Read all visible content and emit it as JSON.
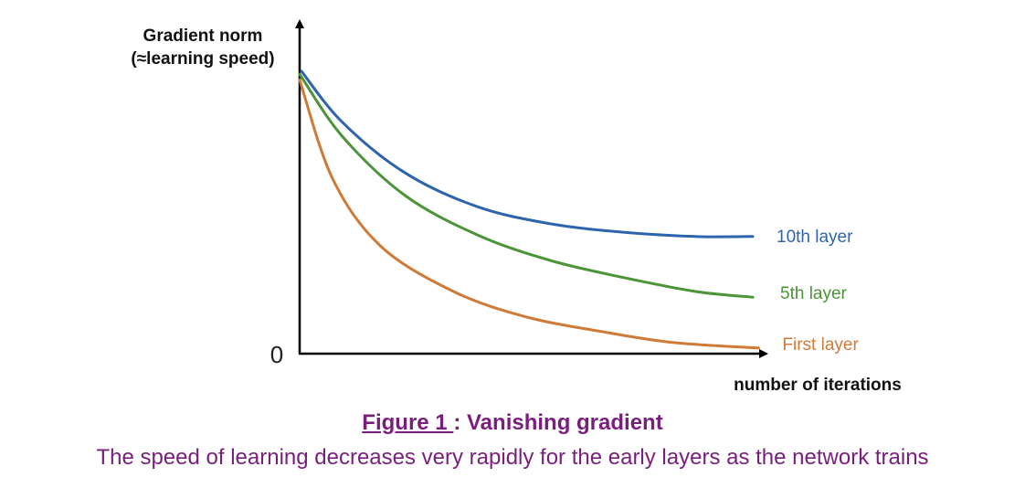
{
  "chart_data": {
    "type": "line",
    "ylabel_line1": "Gradient norm",
    "ylabel_line2": "(≈learning speed)",
    "xlabel": "number of iterations",
    "y_tick_labels": [
      "0"
    ],
    "xlim": [
      0,
      1
    ],
    "ylim": [
      0,
      1
    ],
    "grid": false,
    "legend": "inline-labels-at-line-ends",
    "series": [
      {
        "name": "10th layer",
        "color": "#2e64ad",
        "x": [
          0.036,
          0.12,
          0.25,
          0.4,
          0.55,
          0.7,
          0.85,
          0.968
        ],
        "y": [
          1.0,
          0.82,
          0.64,
          0.52,
          0.46,
          0.43,
          0.415,
          0.415
        ]
      },
      {
        "name": "5th layer",
        "color": "#4b9438",
        "x": [
          0.032,
          0.12,
          0.25,
          0.4,
          0.55,
          0.7,
          0.85,
          0.968
        ],
        "y": [
          0.99,
          0.77,
          0.56,
          0.42,
          0.33,
          0.27,
          0.22,
          0.2
        ]
      },
      {
        "name": "First layer",
        "color": "#d07a38",
        "x": [
          0.032,
          0.1,
          0.2,
          0.35,
          0.5,
          0.65,
          0.8,
          0.98
        ],
        "y": [
          0.97,
          0.62,
          0.38,
          0.22,
          0.13,
          0.08,
          0.04,
          0.02
        ]
      }
    ]
  },
  "caption": {
    "figure_number": "Figure 1 ",
    "separator": ": ",
    "title": "Vanishing gradient",
    "description": "The speed of learning decreases very rapidly for the early layers as the network trains"
  }
}
